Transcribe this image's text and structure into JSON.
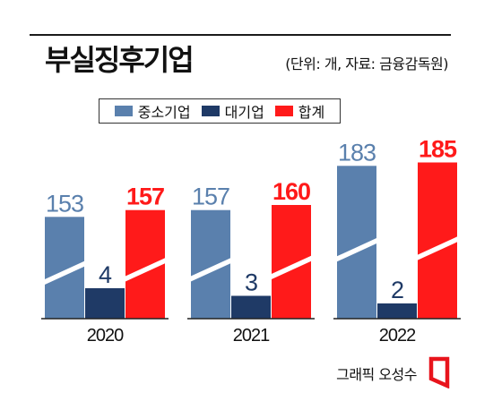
{
  "header": {
    "title": "부실징후기업",
    "unit_note": "(단위: 개, 자료: 금융감독원)"
  },
  "legend": [
    {
      "label": "중소기업",
      "color": "#5a80ad"
    },
    {
      "label": "대기업",
      "color": "#1f3a66"
    },
    {
      "label": "합계",
      "color": "#ff1a1a"
    }
  ],
  "footer": {
    "credit": "그래픽 오성수"
  },
  "chart_data": {
    "type": "bar",
    "categories": [
      "2020",
      "2021",
      "2022"
    ],
    "series": [
      {
        "name": "중소기업",
        "values": [
          153,
          157,
          183
        ],
        "color": "#5a80ad"
      },
      {
        "name": "대기업",
        "values": [
          4,
          3,
          2
        ],
        "color": "#1f3a66"
      },
      {
        "name": "합계",
        "values": [
          157,
          160,
          185
        ],
        "color": "#ff1a1a"
      }
    ],
    "axis_break": true,
    "title": "부실징후기업",
    "xlabel": "",
    "ylabel": ""
  }
}
